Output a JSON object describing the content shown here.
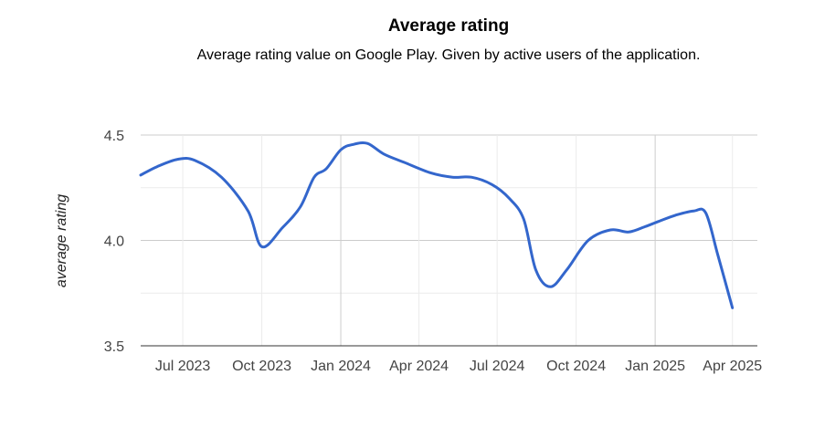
{
  "chart_data": {
    "type": "line",
    "title": "Average rating",
    "subtitle": "Average rating value on Google Play. Given by active users of the application.",
    "xlabel": "",
    "ylabel": "average rating",
    "ylim": [
      3.5,
      4.5
    ],
    "yticks": [
      3.5,
      4.0,
      4.5
    ],
    "y_tick_labels": [
      "3.5",
      "4.0",
      "4.5"
    ],
    "xlim": [
      "2023-05-13",
      "2025-04-30"
    ],
    "x_ticks": [
      {
        "date": "2023-07-01",
        "label": "Jul 2023"
      },
      {
        "date": "2023-10-01",
        "label": "Oct 2023"
      },
      {
        "date": "2024-01-01",
        "label": "Jan 2024"
      },
      {
        "date": "2024-04-01",
        "label": "Apr 2024"
      },
      {
        "date": "2024-07-01",
        "label": "Jul 2024"
      },
      {
        "date": "2024-10-01",
        "label": "Oct 2024"
      },
      {
        "date": "2025-01-01",
        "label": "Jan 2025"
      },
      {
        "date": "2025-04-01",
        "label": "Apr 2025"
      }
    ],
    "grid": true,
    "color": "#3366cc",
    "series": [
      {
        "x": [
          "2023-05-13",
          "2023-06-01",
          "2023-06-25",
          "2023-07-15",
          "2023-08-15",
          "2023-09-15",
          "2023-10-01",
          "2023-10-25",
          "2023-11-15",
          "2023-12-01",
          "2023-12-15",
          "2024-01-01",
          "2024-01-15",
          "2024-02-01",
          "2024-02-20",
          "2024-03-15",
          "2024-04-15",
          "2024-05-10",
          "2024-06-01",
          "2024-06-25",
          "2024-07-15",
          "2024-08-01",
          "2024-08-15",
          "2024-09-01",
          "2024-09-20",
          "2024-10-15",
          "2024-11-10",
          "2024-12-01",
          "2024-12-20",
          "2025-01-05",
          "2025-01-25",
          "2025-02-15",
          "2025-03-01",
          "2025-03-15",
          "2025-04-01"
        ],
        "y": [
          4.31,
          4.35,
          4.385,
          4.38,
          4.3,
          4.14,
          3.97,
          4.06,
          4.16,
          4.3,
          4.34,
          4.43,
          4.455,
          4.46,
          4.41,
          4.37,
          4.32,
          4.3,
          4.3,
          4.265,
          4.2,
          4.1,
          3.86,
          3.78,
          3.86,
          4.0,
          4.05,
          4.04,
          4.065,
          4.09,
          4.12,
          4.14,
          4.13,
          3.93,
          3.68
        ]
      }
    ]
  }
}
